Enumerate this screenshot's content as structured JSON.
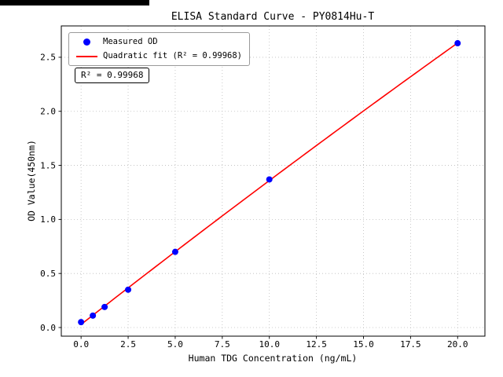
{
  "chart_data": {
    "type": "scatter",
    "title": "ELISA Standard Curve - PY0814Hu-T",
    "xlabel": "Human TDG Concentration (ng/mL)",
    "ylabel": "OD Value(450nm)",
    "xlim": [
      -1.05,
      21.45
    ],
    "ylim": [
      -0.08,
      2.79
    ],
    "xticks": [
      0,
      2.5,
      5,
      7.5,
      10,
      12.5,
      15,
      17.5,
      20
    ],
    "yticks": [
      0,
      0.5,
      1,
      1.5,
      2,
      2.5
    ],
    "grid": true,
    "grid_style": "dotted",
    "legend_position": "upper left",
    "series": [
      {
        "name": "Measured OD",
        "type": "scatter",
        "color": "#0000ff",
        "x": [
          0,
          0.625,
          1.25,
          2.5,
          5,
          10,
          20
        ],
        "y": [
          0.05,
          0.11,
          0.19,
          0.35,
          0.7,
          1.37,
          2.63
        ]
      },
      {
        "name": "Quadratic fit (R² = 0.99968)",
        "type": "line",
        "fit": "quadratic",
        "color": "#ff0000",
        "coefficients": {
          "a": -0.000292,
          "b": 0.13603,
          "c": 0.0285
        },
        "x_range": [
          0,
          20
        ],
        "r_squared": 0.99968
      }
    ],
    "annotation": {
      "text": "R² = 0.99968"
    }
  }
}
